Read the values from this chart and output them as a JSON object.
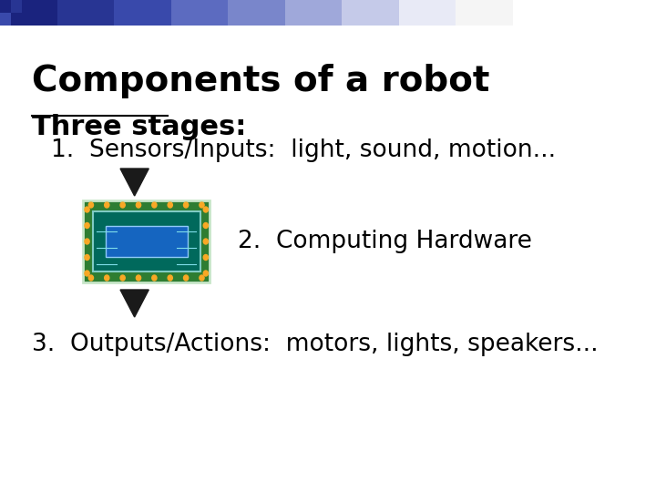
{
  "title": "Components of a robot",
  "subtitle": "Three stages:",
  "line1": "1.  Sensors/Inputs:  light, sound, motion...",
  "line2": "2.  Computing Hardware",
  "line3": "3.  Outputs/Actions:  motors, lights, speakers...",
  "bg_color": "#ffffff",
  "title_fontsize": 28,
  "subtitle_fontsize": 22,
  "body_fontsize": 19,
  "arrow_color": "#1a1a1a",
  "chip_pcb_color": "#2e7d32",
  "chip_inner_color": "#00695c",
  "chip_die_color": "#1565c0",
  "chip_pin_color": "#f9a825",
  "chip_trace_color": "#80deea",
  "underline_color": "#000000"
}
